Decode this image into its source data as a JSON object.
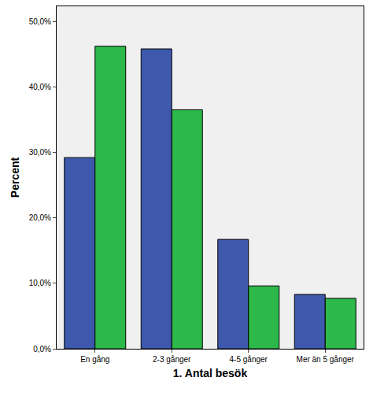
{
  "chart_data": {
    "type": "bar",
    "x_label": "1. Antal besök",
    "y_label": "Percent",
    "categories": [
      "En gång",
      "2-3 gånger",
      "4-5 gånger",
      "Mer än 5 gånger"
    ],
    "series": [
      {
        "color": "#3e58ac",
        "values": [
          29.2,
          45.8,
          16.7,
          8.3
        ]
      },
      {
        "color": "#2db84a",
        "values": [
          46.2,
          36.5,
          9.6,
          7.7
        ]
      }
    ],
    "ylim": [
      0,
      52.3
    ],
    "yticks": [
      {
        "value": 0,
        "label": "0,0%"
      },
      {
        "value": 10,
        "label": "10,0%"
      },
      {
        "value": 20,
        "label": "20,0%"
      },
      {
        "value": 30,
        "label": "30,0%"
      },
      {
        "value": 40,
        "label": "40,0%"
      },
      {
        "value": 50,
        "label": "50,0%"
      }
    ],
    "grid": false
  }
}
